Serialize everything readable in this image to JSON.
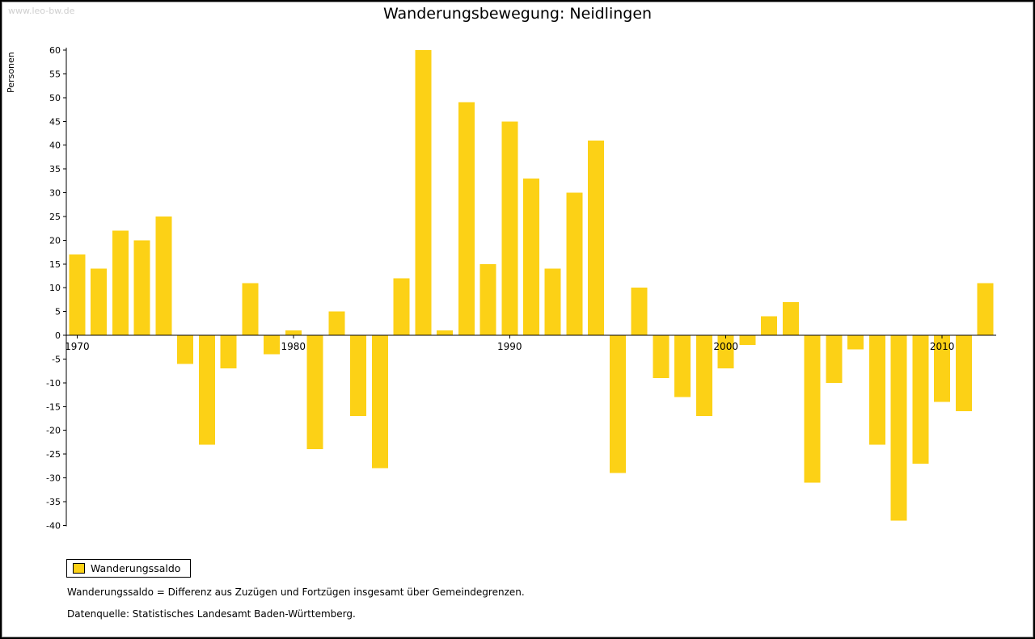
{
  "watermark": "www.leo-bw.de",
  "title": "Wanderungsbewegung: Neidlingen",
  "y_axis_label": "Personen",
  "legend": {
    "label": "Wanderungssaldo",
    "swatch_color": "#FCD116"
  },
  "footnotes": {
    "definition": "Wanderungssaldo = Differenz aus Zuzügen und Fortzügen insgesamt über Gemeindegrenzen.",
    "source": "Datenquelle: Statistisches Landesamt Baden-Württemberg."
  },
  "chart_data": {
    "type": "bar",
    "title": "Wanderungsbewegung: Neidlingen",
    "ylabel": "Personen",
    "series_name": "Wanderungssaldo",
    "years": [
      1970,
      1971,
      1972,
      1973,
      1974,
      1975,
      1976,
      1977,
      1978,
      1979,
      1980,
      1981,
      1982,
      1983,
      1984,
      1985,
      1986,
      1987,
      1988,
      1989,
      1990,
      1991,
      1992,
      1993,
      1994,
      1995,
      1996,
      1997,
      1998,
      1999,
      2000,
      2001,
      2002,
      2003,
      2004,
      2005,
      2006,
      2007,
      2008,
      2009,
      2010,
      2011,
      2012
    ],
    "values": [
      17,
      14,
      22,
      20,
      25,
      -6,
      -23,
      -7,
      11,
      -4,
      1,
      -24,
      5,
      -17,
      -28,
      12,
      60,
      1,
      49,
      15,
      45,
      33,
      14,
      30,
      41,
      -29,
      10,
      -9,
      -13,
      -17,
      -7,
      -2,
      4,
      7,
      -31,
      -10,
      -3,
      -23,
      -39,
      -27,
      -14,
      -16,
      11
    ],
    "ylim": [
      -40,
      60
    ],
    "ytick_step": 5,
    "xticks": [
      1970,
      1980,
      1990,
      2000,
      2010
    ],
    "bar_color": "#FCD116",
    "axis_color": "#000000",
    "grid": false,
    "legend_position": "bottom-left"
  }
}
